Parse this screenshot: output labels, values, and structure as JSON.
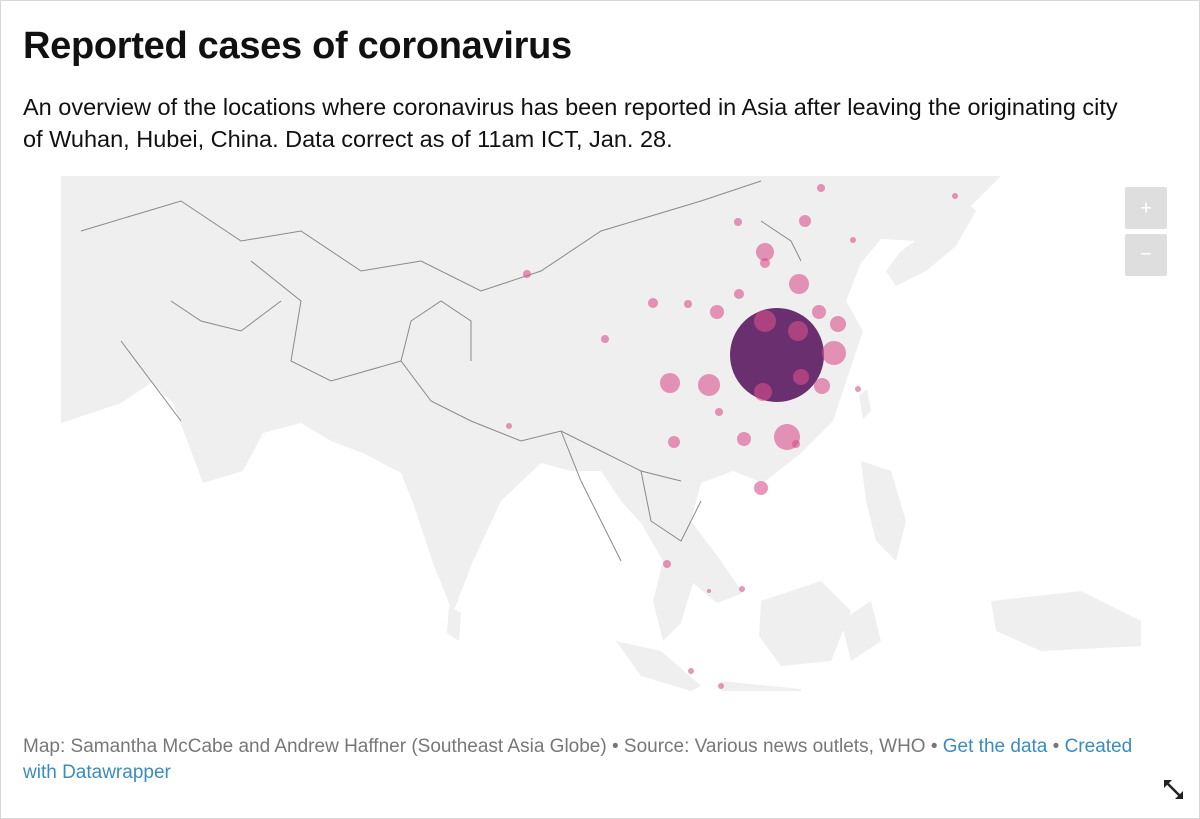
{
  "header": {
    "title": "Reported cases of coronavirus",
    "description": "An overview of the locations where coronavirus has been reported in Asia after leaving the originating city of Wuhan, Hubei, China. Data correct as of 11am ICT, Jan. 28."
  },
  "map": {
    "zoom_in": "+",
    "zoom_out": "−",
    "markers": [
      {
        "value": 2714,
        "color": "#5b1a60"
      },
      {
        "value": 149,
        "color": "#d9508a"
      },
      {
        "value": 123,
        "color": "#d9508a"
      },
      {
        "value": 177,
        "color": "#d9508a"
      },
      {
        "value": 79,
        "color": "#d9508a"
      },
      {
        "value": 100,
        "color": "#d9508a"
      },
      {
        "value": 79,
        "color": "#d9508a"
      },
      {
        "value": 208,
        "color": "#d9508a"
      },
      {
        "value": 149,
        "color": "#d9508a"
      },
      {
        "value": 123,
        "color": "#d9508a"
      },
      {
        "value": 100,
        "color": "#d9508a"
      },
      {
        "value": 123,
        "color": "#d9508a"
      },
      {
        "value": 60,
        "color": "#d9508a"
      },
      {
        "value": 79,
        "color": "#d9508a"
      },
      {
        "value": 60,
        "color": "#d9508a"
      },
      {
        "value": 31,
        "color": "#d9508a"
      },
      {
        "value": 20,
        "color": "#d9508a"
      },
      {
        "value": 31,
        "color": "#d9508a"
      },
      {
        "value": 44,
        "color": "#d9508a"
      },
      {
        "value": 20,
        "color": "#d9508a"
      },
      {
        "value": 20,
        "color": "#d9508a"
      },
      {
        "value": 11,
        "color": "#d9508a"
      },
      {
        "value": 11,
        "color": "#d9508a"
      },
      {
        "value": 20,
        "color": "#d9508a"
      },
      {
        "value": 20,
        "color": "#d9508a"
      },
      {
        "value": 60,
        "color": "#d9508a"
      },
      {
        "value": 44,
        "color": "#d9508a"
      },
      {
        "value": 20,
        "color": "#d9508a"
      },
      {
        "value": 60,
        "color": "#d9508a"
      },
      {
        "value": 11,
        "color": "#d9508a"
      },
      {
        "value": 11,
        "color": "#d9508a"
      },
      {
        "value": 20,
        "color": "#d9508a"
      },
      {
        "value": 5,
        "color": "#d9508a"
      },
      {
        "value": 11,
        "color": "#d9508a"
      },
      {
        "value": 11,
        "color": "#d9508a"
      },
      {
        "value": 11,
        "color": "#d9508a"
      },
      {
        "value": 20,
        "color": "#d9508a"
      },
      {
        "value": 31,
        "color": "#d9508a"
      }
    ]
  },
  "footer": {
    "credit": "Map: Samantha McCabe and Andrew Haffner (Southeast Asia Globe) • Source: Various news outlets, WHO •",
    "link_data": "Get the data",
    "separator": "•",
    "link_datawrapper": "Created with Datawrapper"
  }
}
